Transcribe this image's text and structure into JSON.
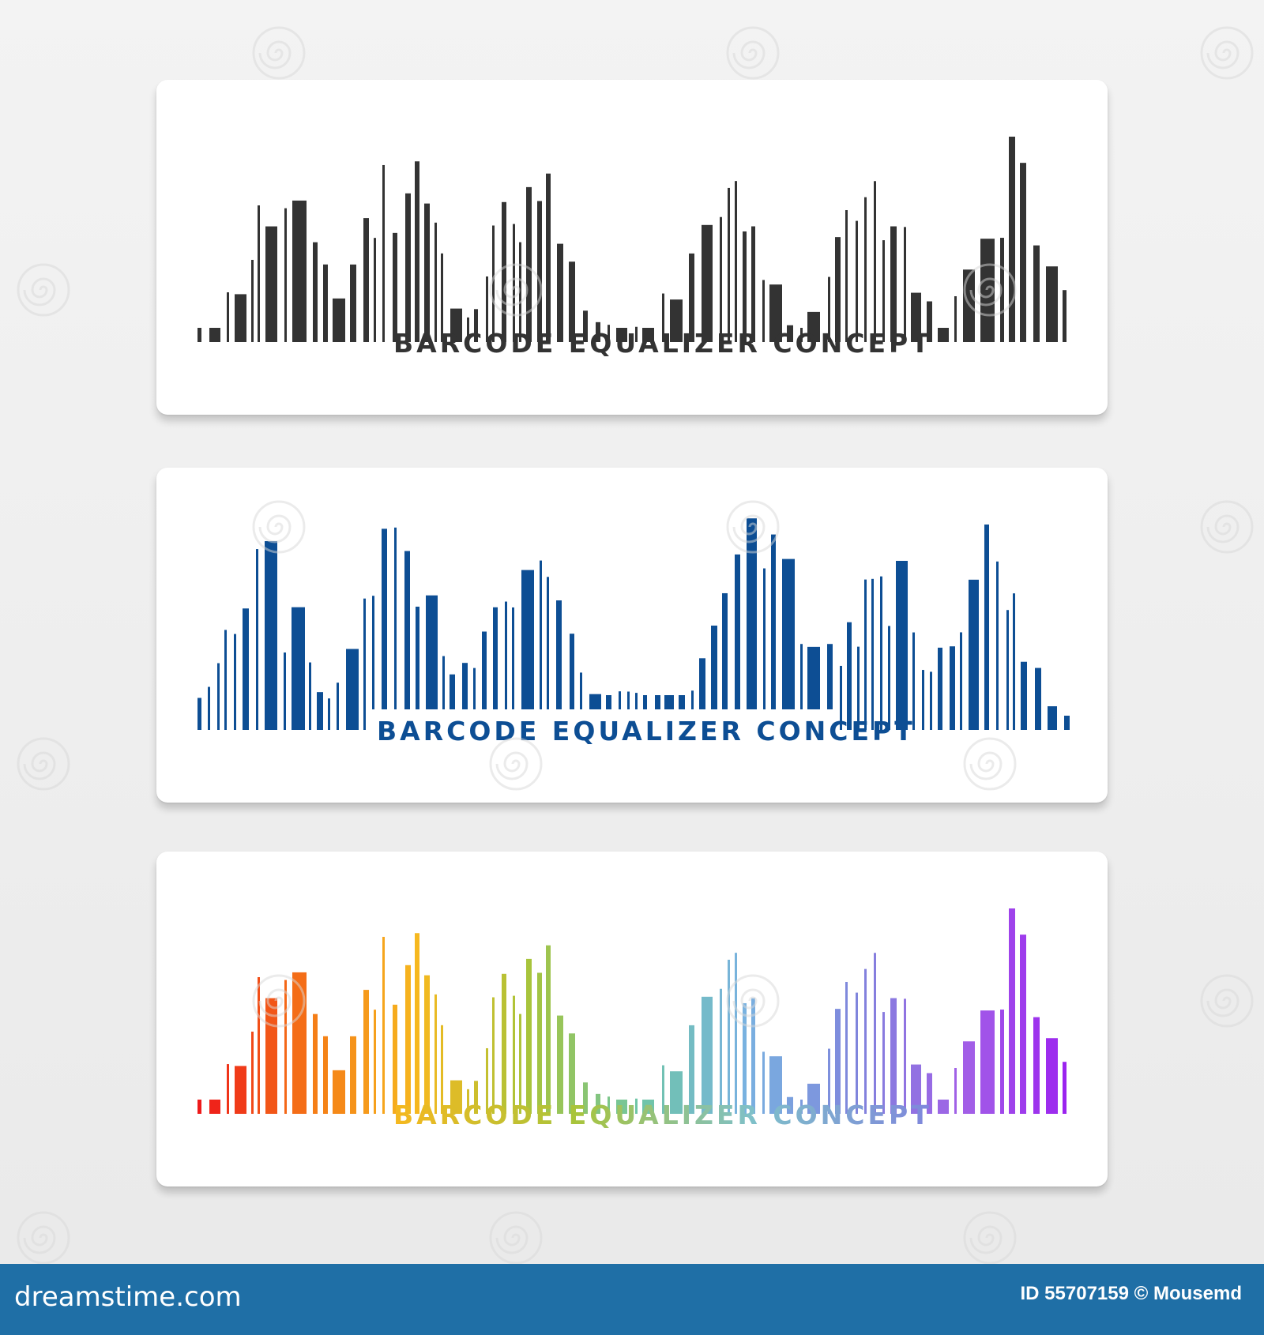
{
  "caption": "BARCODE EQUALIZER CONCEPT",
  "variants": [
    {
      "name": "black",
      "bar_color": "#333333",
      "caption_color": "#333333"
    },
    {
      "name": "blue",
      "bar_color": "#0d4e94",
      "caption_color": "#0d4e94"
    },
    {
      "name": "rainbow",
      "gradient": [
        "#ee1a1a",
        "#f57a16",
        "#f6b81f",
        "#a9c43a",
        "#6fc6a5",
        "#79b2e0",
        "#7f86dc",
        "#a25fe7",
        "#9b1ff0"
      ],
      "caption_gradient": [
        "#f6b81f",
        "#a9c43a",
        "#7fc0c9",
        "#7f86dc"
      ]
    }
  ],
  "footer": {
    "logo": "dreamstime.com",
    "id_text": "ID 55707159 © Mousemd",
    "bg_color": "#1f6fa6"
  },
  "icons": {
    "watermark": "spiral-watermark-icon"
  }
}
